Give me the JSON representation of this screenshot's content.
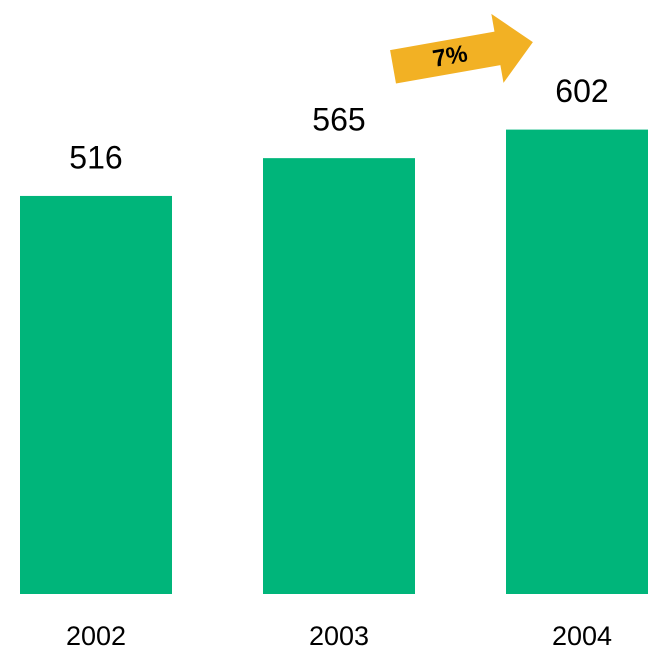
{
  "chart_data": {
    "type": "bar",
    "categories": [
      "2002",
      "2003",
      "2004"
    ],
    "values": [
      516,
      565,
      602
    ],
    "color": "#00b57a",
    "ylim": [
      0,
      700
    ],
    "annotation": "7%",
    "annotation_color": "#f2b124"
  }
}
